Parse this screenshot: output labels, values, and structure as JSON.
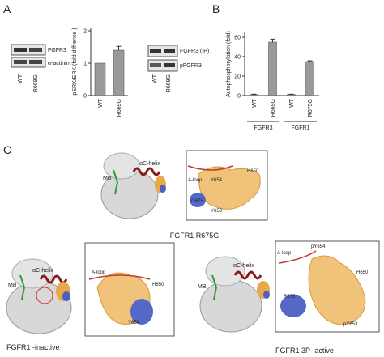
{
  "panel_labels": [
    "A",
    "B",
    "C"
  ],
  "blots": [
    {
      "rows": [
        "FGFR3",
        "α-actinin"
      ],
      "lanes": [
        "WT",
        "R669G"
      ]
    },
    {
      "rows": [
        "FGFR3 (IP)",
        "pFGFR3"
      ],
      "lanes": [
        "WT",
        "R669G"
      ]
    }
  ],
  "chart_data": [
    {
      "type": "bar",
      "y_label": "pERK/ERK (fold diffrence )",
      "categories": [
        "WT",
        "R669G"
      ],
      "values": [
        1,
        1.4
      ],
      "errors": [
        null,
        0.12
      ],
      "color": "#9a9a9a",
      "ylim": [
        0,
        2.1
      ],
      "yticks": [
        0,
        1,
        2
      ]
    },
    {
      "type": "bar",
      "y_label": "Autophosphorylation (fold)",
      "categories": [
        "WT",
        "R669G",
        "WT",
        "R675G"
      ],
      "values": [
        1,
        55,
        1,
        35
      ],
      "errors": [
        0.4,
        3,
        0.4,
        0.8
      ],
      "color": "#9a9a9a",
      "ylim": [
        0,
        65
      ],
      "yticks": [
        0,
        20,
        40,
        60
      ],
      "groups": [
        "FGFR3",
        "FGFR1"
      ]
    }
  ],
  "structures": [
    {
      "title": "FGFR1 R675G",
      "helix": "αC-helix",
      "mb": "MB",
      "inset_labels": [
        "A-loop",
        "Y654",
        "H650",
        "G675",
        "Y653"
      ]
    },
    {
      "title": "FGFR1 -inactive",
      "helix": "αC-helix",
      "mb": "MB",
      "inset_labels": [
        "A-loop",
        "H650",
        "Y654"
      ]
    },
    {
      "title": "FGFR1 3P -active",
      "helix": "αC-helix",
      "mb": "MB",
      "inset_labels": [
        "A-loop",
        "pY654",
        "H650",
        "R675",
        "pY653"
      ]
    }
  ]
}
